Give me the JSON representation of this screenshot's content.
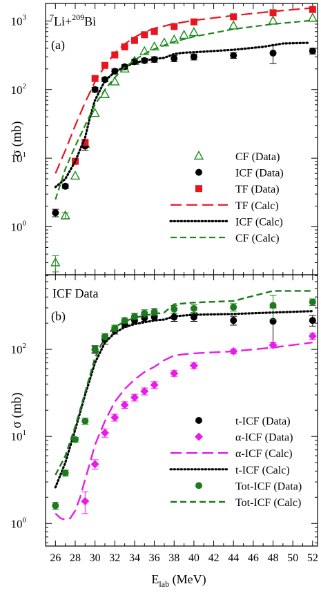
{
  "chart_data": [
    {
      "type": "scatter",
      "panel_label": "(a)",
      "title_parts": {
        "pre": "7",
        "mid": "Li+",
        "sup2": "209",
        "post": "Bi"
      },
      "ylabel": "σ (mb)",
      "yscale": "log",
      "xlim": [
        25,
        52.5
      ],
      "ylim": [
        0.2,
        1800
      ],
      "y_ticks": [
        {
          "v": 1,
          "b": "10",
          "e": "0"
        },
        {
          "v": 10,
          "b": "10",
          "e": "1"
        },
        {
          "v": 100,
          "b": "10",
          "e": "2"
        },
        {
          "v": 1000,
          "b": "10",
          "e": "3"
        }
      ],
      "legend_position": "right-middle",
      "series": [
        {
          "name": "CF (Data)",
          "kind": "points",
          "marker": "triangle-open",
          "color": "#1a8a1a",
          "points": [
            [
              26,
              0.3,
              0.08
            ],
            [
              27,
              1.45,
              0.15
            ],
            [
              28,
              5.5,
              0
            ],
            [
              29,
              16,
              0
            ],
            [
              30,
              45,
              0
            ],
            [
              31,
              85,
              0
            ],
            [
              32,
              130,
              0
            ],
            [
              33,
              200,
              0
            ],
            [
              34,
              260,
              0
            ],
            [
              35,
              360,
              0
            ],
            [
              36,
              420,
              0
            ],
            [
              37,
              480,
              0
            ],
            [
              38,
              530,
              0
            ],
            [
              39,
              620,
              0
            ],
            [
              40,
              680,
              0
            ],
            [
              44,
              850,
              0
            ],
            [
              48,
              1000,
              0
            ],
            [
              52,
              1100,
              0
            ]
          ]
        },
        {
          "name": "ICF (Data)",
          "kind": "points",
          "marker": "circle",
          "color": "#000000",
          "points": [
            [
              26,
              1.6,
              0.2
            ],
            [
              27,
              3.9,
              0.3
            ],
            [
              28,
              9,
              0.7
            ],
            [
              29,
              15,
              2
            ],
            [
              30,
              100,
              8
            ],
            [
              31,
              140,
              10
            ],
            [
              32,
              185,
              15
            ],
            [
              33,
              215,
              15
            ],
            [
              34,
              255,
              20
            ],
            [
              35,
              265,
              20
            ],
            [
              36,
              275,
              25
            ],
            [
              38,
              285,
              30
            ],
            [
              40,
              300,
              30
            ],
            [
              44,
              315,
              30
            ],
            [
              48,
              340,
              100
            ],
            [
              52,
              365,
              35
            ]
          ]
        },
        {
          "name": "TF (Data)",
          "kind": "points",
          "marker": "square",
          "color": "#e8141e",
          "points": [
            [
              28,
              9,
              0
            ],
            [
              29,
              17,
              0
            ],
            [
              30,
              145,
              0
            ],
            [
              31,
              225,
              0
            ],
            [
              32,
              320,
              0
            ],
            [
              33,
              420,
              0
            ],
            [
              34,
              520,
              0
            ],
            [
              35,
              630,
              0
            ],
            [
              36,
              700,
              0
            ],
            [
              38,
              830,
              0
            ],
            [
              40,
              970,
              0
            ],
            [
              44,
              1150,
              0
            ],
            [
              48,
              1320,
              0
            ],
            [
              52,
              1470,
              0
            ]
          ]
        },
        {
          "name": "TF (Calc)",
          "kind": "line",
          "dash": "16,7",
          "color": "#e8141e",
          "width": 2.2,
          "points": [
            [
              26,
              6
            ],
            [
              27,
              13
            ],
            [
              28,
              30
            ],
            [
              29,
              65
            ],
            [
              30,
              130
            ],
            [
              31,
              220
            ],
            [
              32,
              340
            ],
            [
              33,
              460
            ],
            [
              34,
              580
            ],
            [
              35,
              690
            ],
            [
              36,
              780
            ],
            [
              38,
              910
            ],
            [
              40,
              1020
            ],
            [
              44,
              1200
            ],
            [
              48,
              1380
            ],
            [
              52,
              1550
            ]
          ]
        },
        {
          "name": "ICF (Calc)",
          "kind": "line",
          "dash": "1.5,3.5",
          "color": "#000000",
          "width": 3.2,
          "points": [
            [
              26,
              3.8
            ],
            [
              27,
              5
            ],
            [
              28,
              9
            ],
            [
              29,
              20
            ],
            [
              29.5,
              40
            ],
            [
              30,
              70
            ],
            [
              31,
              135
            ],
            [
              32,
              180
            ],
            [
              33,
              215
            ],
            [
              34,
              245
            ],
            [
              35,
              265
            ],
            [
              36,
              280
            ],
            [
              37,
              290
            ],
            [
              38,
              330
            ],
            [
              39,
              345
            ],
            [
              40,
              350
            ],
            [
              44,
              380
            ],
            [
              47,
              420
            ],
            [
              49,
              470
            ],
            [
              51.5,
              480
            ]
          ]
        },
        {
          "name": "CF (Calc)",
          "kind": "line",
          "dash": "9,5",
          "color": "#1a8a1a",
          "width": 2.2,
          "points": [
            [
              26,
              2.5
            ],
            [
              27,
              7
            ],
            [
              28,
              15
            ],
            [
              29,
              30
            ],
            [
              30,
              60
            ],
            [
              31,
              100
            ],
            [
              32,
              150
            ],
            [
              33,
              210
            ],
            [
              34,
              270
            ],
            [
              35,
              330
            ],
            [
              36,
              390
            ],
            [
              38,
              500
            ],
            [
              40,
              590
            ],
            [
              44,
              760
            ],
            [
              48,
              900
            ],
            [
              52,
              1020
            ]
          ]
        }
      ]
    },
    {
      "type": "scatter",
      "panel_label": "(b)",
      "title": "ICF Data",
      "ylabel": "σ (mb)",
      "xlabel_parts": {
        "base": "E",
        "sub": "lab",
        "post": " (MeV)"
      },
      "yscale": "log",
      "xlim": [
        25,
        52.5
      ],
      "ylim": [
        0.55,
        720
      ],
      "x_ticks": [
        26,
        28,
        30,
        32,
        34,
        36,
        38,
        40,
        42,
        44,
        46,
        48,
        50,
        52
      ],
      "y_ticks": [
        {
          "v": 1,
          "b": "10",
          "e": "0"
        },
        {
          "v": 10,
          "b": "10",
          "e": "1"
        },
        {
          "v": 100,
          "b": "10",
          "e": "2"
        }
      ],
      "legend_position": "right-middle",
      "series": [
        {
          "name": "t-ICF (Data)",
          "kind": "points",
          "marker": "circle",
          "color": "#000000",
          "points": [
            [
              30,
              100,
              10
            ],
            [
              31,
              130,
              15
            ],
            [
              32,
              165,
              15
            ],
            [
              33,
              195,
              15
            ],
            [
              34,
              215,
              15
            ],
            [
              35,
              230,
              20
            ],
            [
              36,
              235,
              20
            ],
            [
              38,
              235,
              25
            ],
            [
              40,
              235,
              25
            ],
            [
              44,
              215,
              25
            ],
            [
              48,
              210,
              90
            ],
            [
              52,
              215,
              30
            ]
          ]
        },
        {
          "name": "α-ICF (Data)",
          "kind": "points",
          "marker": "diamond",
          "color": "#e81be8",
          "points": [
            [
              29,
              1.8,
              0.5
            ],
            [
              30,
              4.8,
              0.6
            ],
            [
              31,
              11,
              1.2
            ],
            [
              32,
              16.5,
              1.5
            ],
            [
              33,
              23,
              2
            ],
            [
              34,
              28,
              2.5
            ],
            [
              35,
              33,
              3
            ],
            [
              36,
              39,
              3.5
            ],
            [
              38,
              53,
              4
            ],
            [
              40,
              65,
              5
            ],
            [
              44,
              95,
              6
            ],
            [
              48,
              112,
              8
            ],
            [
              52,
              142,
              12
            ]
          ]
        },
        {
          "name": "α-ICF (Calc)",
          "kind": "line",
          "dash": "16,7",
          "color": "#e81be8",
          "width": 2.4,
          "points": [
            [
              26,
              1.3
            ],
            [
              26.5,
              1.15
            ],
            [
              27,
              1.1
            ],
            [
              27.5,
              1.15
            ],
            [
              28,
              1.4
            ],
            [
              28.5,
              2
            ],
            [
              29,
              3.2
            ],
            [
              29.5,
              5
            ],
            [
              30,
              8
            ],
            [
              31,
              15
            ],
            [
              32,
              25
            ],
            [
              33,
              35
            ],
            [
              34,
              45
            ],
            [
              35,
              55
            ],
            [
              36,
              63
            ],
            [
              37,
              75
            ],
            [
              38,
              85
            ],
            [
              39,
              88
            ],
            [
              40,
              90
            ],
            [
              44,
              95
            ],
            [
              48,
              105
            ],
            [
              52,
              120
            ]
          ]
        },
        {
          "name": "t-ICF (Calc)",
          "kind": "line",
          "dash": "1.5,3.5",
          "color": "#000000",
          "width": 3.2,
          "points": [
            [
              26,
              2.6
            ],
            [
              27,
              5
            ],
            [
              28,
              12
            ],
            [
              29,
              30
            ],
            [
              30,
              70
            ],
            [
              31,
              120
            ],
            [
              32,
              155
            ],
            [
              33,
              180
            ],
            [
              34,
              195
            ],
            [
              35,
              205
            ],
            [
              36,
              215
            ],
            [
              37,
              220
            ],
            [
              38,
              240
            ],
            [
              40,
              250
            ],
            [
              44,
              255
            ],
            [
              48,
              265
            ],
            [
              52,
              275
            ]
          ]
        },
        {
          "name": "Tot-ICF (Data)",
          "kind": "points",
          "marker": "circle",
          "color": "#1e7a1e",
          "points": [
            [
              26,
              1.6,
              0.15
            ],
            [
              27,
              3.8,
              0.3
            ],
            [
              28,
              9.2,
              0.6
            ],
            [
              29,
              15,
              1.2
            ],
            [
              30,
              100,
              8
            ],
            [
              31,
              140,
              12
            ],
            [
              32,
              175,
              15
            ],
            [
              33,
              215,
              15
            ],
            [
              34,
              240,
              20
            ],
            [
              35,
              260,
              25
            ],
            [
              36,
              270,
              25
            ],
            [
              38,
              290,
              30
            ],
            [
              40,
              295,
              30
            ],
            [
              44,
              305,
              30
            ],
            [
              48,
              320,
              100
            ],
            [
              52,
              350,
              30
            ]
          ]
        },
        {
          "name": "Tot-ICF (Calc)",
          "kind": "line",
          "dash": "9,5",
          "color": "#1a7a1a",
          "width": 2.4,
          "points": [
            [
              26,
              3.6
            ],
            [
              27,
              6
            ],
            [
              28,
              13
            ],
            [
              29,
              32
            ],
            [
              30,
              80
            ],
            [
              31,
              140
            ],
            [
              32,
              180
            ],
            [
              33,
              210
            ],
            [
              34,
              230
            ],
            [
              35,
              245
            ],
            [
              36,
              255
            ],
            [
              37,
              265
            ],
            [
              38,
              330
            ],
            [
              40,
              345
            ],
            [
              44,
              360
            ],
            [
              48,
              470
            ],
            [
              52,
              470
            ]
          ]
        }
      ]
    }
  ]
}
